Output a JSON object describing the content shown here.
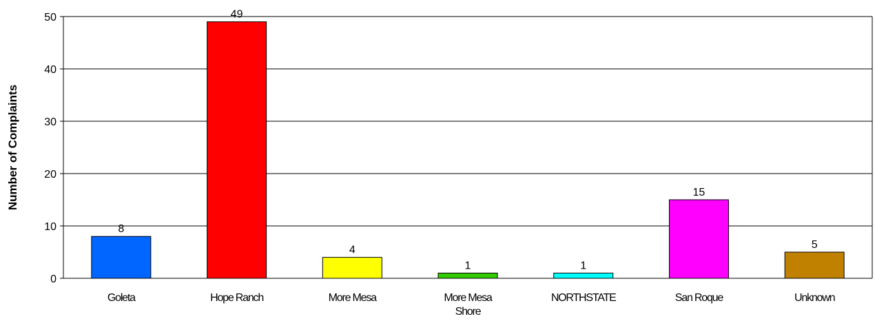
{
  "chart_data": {
    "type": "bar",
    "title": "",
    "xlabel": "",
    "ylabel": "Number of Complaints",
    "ylim": [
      0,
      50
    ],
    "yticks": [
      0,
      10,
      20,
      30,
      40,
      50
    ],
    "grid": true,
    "categories": [
      "Goleta",
      "Hope Ranch",
      "More Mesa",
      "More Mesa Shore",
      "NORTHSTATE",
      "San Roque",
      "Unknown"
    ],
    "category_lines": [
      [
        "Goleta"
      ],
      [
        "Hope Ranch"
      ],
      [
        "More Mesa"
      ],
      [
        "More Mesa",
        "Shore"
      ],
      [
        "NORTHSTATE"
      ],
      [
        "San Roque"
      ],
      [
        "Unknown"
      ]
    ],
    "values": [
      8,
      49,
      4,
      1,
      1,
      15,
      5
    ],
    "data_labels": [
      "8",
      "49",
      "4",
      "1",
      "1",
      "15",
      "5"
    ],
    "colors": [
      "#0066ff",
      "#ff0000",
      "#ffff00",
      "#33cc00",
      "#00ffff",
      "#ff00ff",
      "#c08000"
    ]
  }
}
